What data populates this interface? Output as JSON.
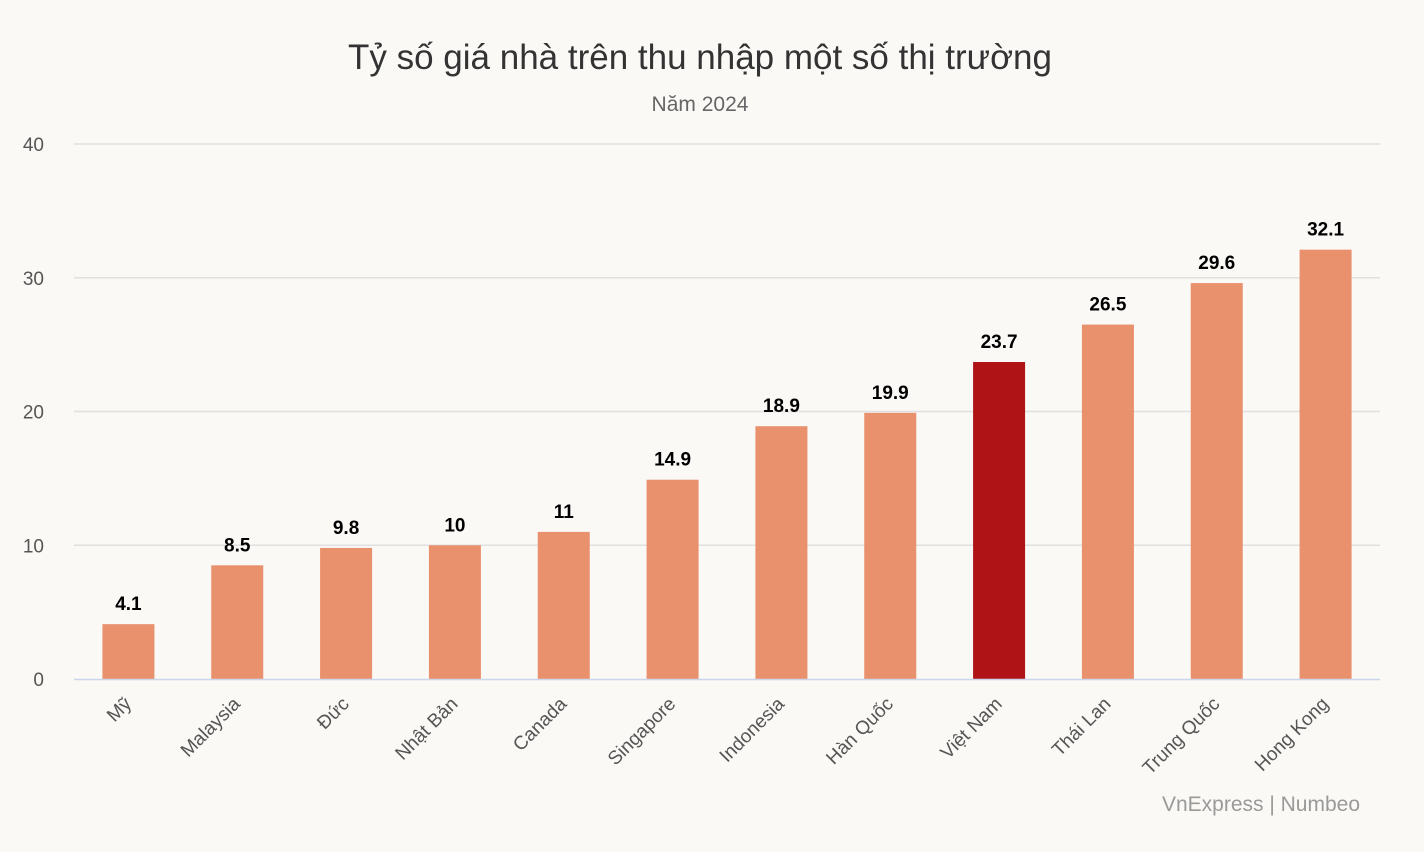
{
  "chart_data": {
    "type": "bar",
    "title": "Tỷ số giá nhà trên thu nhập một số thị trường",
    "subtitle": "Năm 2024",
    "categories": [
      "Mỹ",
      "Malaysia",
      "Đức",
      "Nhật Bản",
      "Canada",
      "Singapore",
      "Indonesia",
      "Hàn Quốc",
      "Việt Nam",
      "Thái Lan",
      "Trung Quốc",
      "Hong Kong"
    ],
    "values": [
      4.1,
      8.5,
      9.8,
      10,
      11,
      14.9,
      18.9,
      19.9,
      23.7,
      26.5,
      29.6,
      32.1
    ],
    "data_labels": [
      "4.1",
      "8.5",
      "9.8",
      "10",
      "11",
      "14.9",
      "18.9",
      "19.9",
      "23.7",
      "26.5",
      "29.6",
      "32.1"
    ],
    "y_ticks": [
      0,
      10,
      20,
      30,
      40
    ],
    "ylim": [
      0,
      40
    ],
    "xlabel": "",
    "ylabel": "",
    "grid": true,
    "legend": "none",
    "colors": {
      "bar": "#e9906d",
      "highlight": "#b01316",
      "grid": "#e0e0e0",
      "axis": "#ccd6eb"
    },
    "highlight_category": "Việt Nam",
    "source": "VnExpress | Numbeo"
  }
}
